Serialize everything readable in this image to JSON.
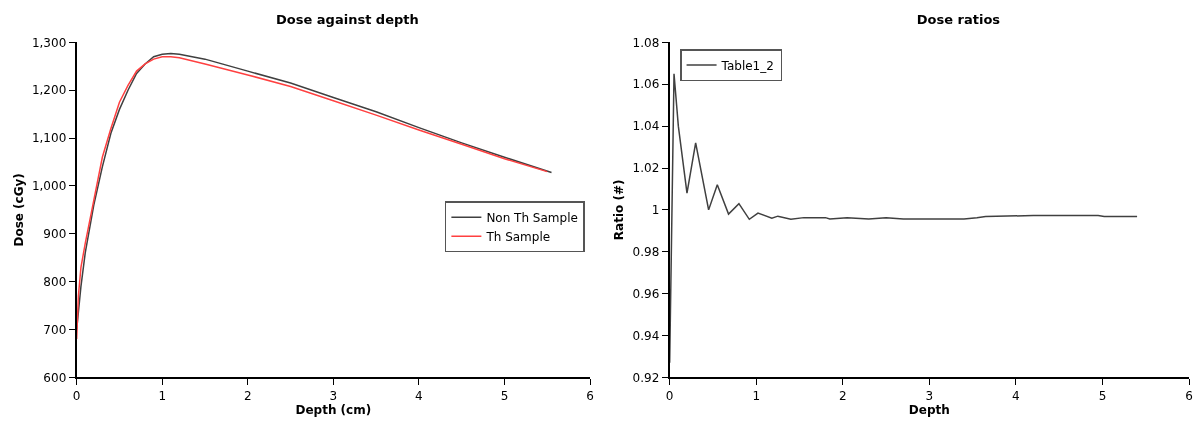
{
  "chart_data": [
    {
      "type": "line",
      "title": "Dose against depth",
      "xlabel": "Depth (cm)",
      "ylabel": "Dose (cGy)",
      "xlim": [
        0,
        6
      ],
      "xticks": [
        0,
        1,
        2,
        3,
        4,
        5,
        6
      ],
      "ylim": [
        600,
        1300
      ],
      "yticks": [
        600,
        700,
        800,
        900,
        {
          "value": 1000,
          "label": "1,000"
        },
        {
          "value": 1100,
          "label": "1,100"
        },
        {
          "value": 1200,
          "label": "1,200"
        },
        {
          "value": 1300,
          "label": "1,300"
        }
      ],
      "grid": false,
      "legend": "right",
      "marker": "none",
      "line_style": "solid",
      "series": [
        {
          "name": "Non Th Sample",
          "color": "#404040",
          "x": [
            0,
            0.05,
            0.1,
            0.2,
            0.3,
            0.4,
            0.5,
            0.6,
            0.7,
            0.8,
            0.9,
            1.0,
            1.1,
            1.2,
            1.5,
            2,
            2.5,
            3,
            3.5,
            4,
            4.5,
            5,
            5.55
          ],
          "values": [
            700,
            790,
            860,
            960,
            1040,
            1110,
            1160,
            1200,
            1235,
            1255,
            1270,
            1275,
            1277,
            1275,
            1265,
            1240,
            1215,
            1185,
            1155,
            1122,
            1090,
            1060,
            1028
          ]
        },
        {
          "name": "Th Sample",
          "color": "#ff4040",
          "x": [
            0,
            0.02,
            0.05,
            0.1,
            0.2,
            0.3,
            0.4,
            0.5,
            0.6,
            0.7,
            0.8,
            0.9,
            1.0,
            1.1,
            1.2,
            1.5,
            2,
            2.5,
            3,
            3.5,
            4,
            4.5,
            5,
            5.5
          ],
          "values": [
            680,
            770,
            830,
            880,
            970,
            1060,
            1120,
            1175,
            1210,
            1240,
            1255,
            1265,
            1270,
            1270,
            1268,
            1255,
            1232,
            1208,
            1178,
            1148,
            1117,
            1087,
            1057,
            1030
          ]
        }
      ]
    },
    {
      "type": "line",
      "title": "Dose ratios",
      "xlabel": "Depth",
      "ylabel": "Ratio (#)",
      "xlim": [
        0,
        6
      ],
      "xticks": [
        0,
        1,
        2,
        3,
        4,
        5,
        6
      ],
      "ylim": [
        0.92,
        1.08
      ],
      "yticks": [
        0.92,
        0.94,
        0.96,
        0.98,
        1,
        1.02,
        1.04,
        1.06,
        1.08
      ],
      "grid": false,
      "legend": "top left",
      "marker": "none",
      "line_style": "solid",
      "series": [
        {
          "name": "Table1_2",
          "color": "#404040",
          "x": [
            0,
            0.05,
            0.1,
            0.2,
            0.3,
            0.45,
            0.55,
            0.68,
            0.8,
            0.92,
            1.02,
            1.18,
            1.25,
            1.4,
            1.55,
            1.8,
            1.85,
            2.05,
            2.3,
            2.5,
            2.7,
            3.4,
            3.55,
            3.65,
            4.2,
            4.95,
            5.02,
            5.4
          ],
          "values": [
            0.927,
            1.065,
            1.04,
            1.008,
            1.032,
            1.0,
            1.012,
            0.998,
            1.003,
            0.9955,
            0.9985,
            0.996,
            0.997,
            0.9955,
            0.9963,
            0.9963,
            0.9957,
            0.9963,
            0.9957,
            0.9963,
            0.9957,
            0.9957,
            0.9963,
            0.9968,
            0.9973,
            0.9973,
            0.9968,
            0.9968
          ]
        }
      ]
    }
  ]
}
